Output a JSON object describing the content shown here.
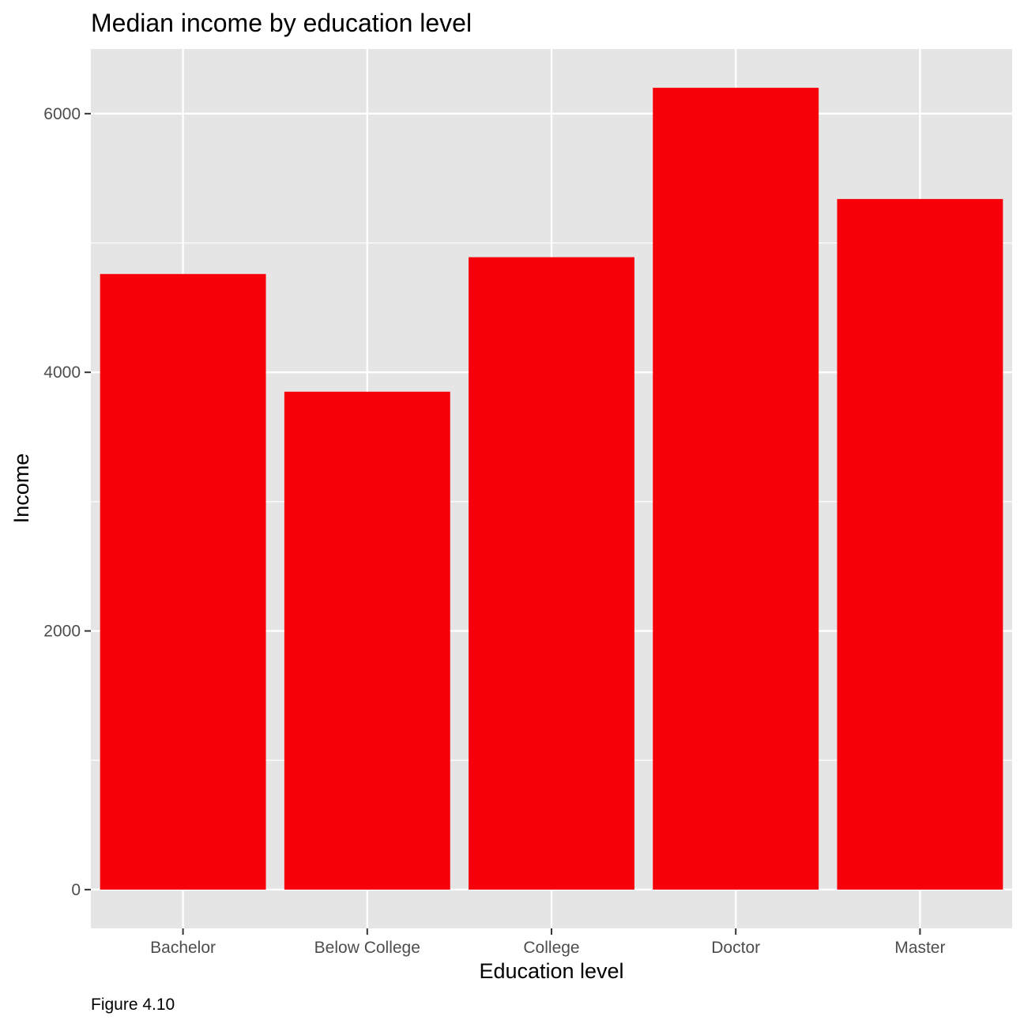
{
  "chart_data": {
    "type": "bar",
    "title": "Median income by education level",
    "xlabel": "Education level",
    "ylabel": "Income",
    "caption": "Figure 4.10",
    "categories": [
      "Bachelor",
      "Below College",
      "College",
      "Doctor",
      "Master"
    ],
    "values": [
      4760,
      3850,
      4890,
      6200,
      5340
    ],
    "ylim": [
      -300,
      6500
    ],
    "yticks": [
      0,
      2000,
      4000,
      6000
    ],
    "yticks_minor": [
      1000,
      3000,
      5000
    ],
    "grid": true,
    "legend": "none",
    "bar_color": "#f8000a",
    "panel_color": "#e5e5e5",
    "grid_color": "#ffffff"
  }
}
